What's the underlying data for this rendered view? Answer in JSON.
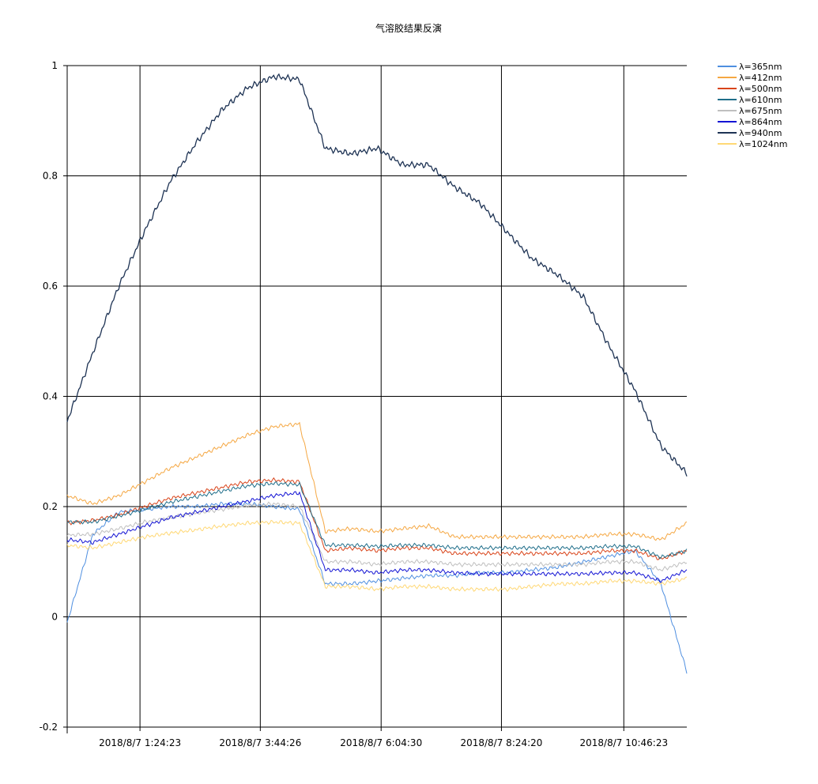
{
  "chart_data": {
    "type": "line",
    "title": "气溶胶结果反演",
    "xlabel": "",
    "ylabel": "",
    "ylim": [
      -0.2,
      1
    ],
    "y_ticks": [
      -0.2,
      0,
      0.2,
      0.4,
      0.6,
      0.8,
      1
    ],
    "y_tick_labels": [
      "-0.2",
      "0",
      "0.2",
      "0.4",
      "0.6",
      "0.8",
      "1"
    ],
    "x_time_range_hours": [
      0.0,
      12.0
    ],
    "x_ticks_hours": [
      1.41,
      3.74,
      6.08,
      8.41,
      10.78
    ],
    "x_tick_labels": [
      "2018/8/7 1:24:23",
      "2018/8/7 3:44:26",
      "2018/8/7 6:04:30",
      "2018/8/7 8:24:20",
      "2018/8/7 10:46:23"
    ],
    "grid": true,
    "legend_position": "top-right",
    "x": [
      0.0,
      0.5,
      1.0,
      1.5,
      2.0,
      2.5,
      3.0,
      3.5,
      4.0,
      4.5,
      5.0,
      5.5,
      6.0,
      6.5,
      7.0,
      7.5,
      8.0,
      8.5,
      9.0,
      9.5,
      10.0,
      10.5,
      11.0,
      11.5,
      12.0
    ],
    "series": [
      {
        "name": "λ=365nm",
        "color": "#4f8fe0",
        "values": [
          -0.01,
          0.15,
          0.19,
          0.195,
          0.2,
          0.2,
          0.205,
          0.205,
          0.2,
          0.195,
          0.06,
          0.06,
          0.065,
          0.07,
          0.075,
          0.075,
          0.08,
          0.08,
          0.085,
          0.09,
          0.1,
          0.11,
          0.12,
          0.06,
          -0.1
        ]
      },
      {
        "name": "λ=412nm",
        "color": "#f5a742",
        "values": [
          0.22,
          0.205,
          0.22,
          0.245,
          0.27,
          0.29,
          0.31,
          0.33,
          0.345,
          0.35,
          0.155,
          0.16,
          0.155,
          0.16,
          0.165,
          0.145,
          0.145,
          0.145,
          0.145,
          0.145,
          0.145,
          0.15,
          0.15,
          0.14,
          0.17
        ]
      },
      {
        "name": "λ=500nm",
        "color": "#d9441a",
        "values": [
          0.17,
          0.175,
          0.185,
          0.2,
          0.215,
          0.225,
          0.235,
          0.245,
          0.248,
          0.245,
          0.12,
          0.125,
          0.12,
          0.125,
          0.125,
          0.115,
          0.115,
          0.115,
          0.115,
          0.115,
          0.115,
          0.12,
          0.12,
          0.105,
          0.12
        ]
      },
      {
        "name": "λ=610nm",
        "color": "#1f6e8a",
        "values": [
          0.172,
          0.172,
          0.183,
          0.195,
          0.208,
          0.218,
          0.228,
          0.238,
          0.242,
          0.24,
          0.13,
          0.13,
          0.128,
          0.13,
          0.13,
          0.125,
          0.125,
          0.125,
          0.125,
          0.125,
          0.125,
          0.128,
          0.128,
          0.108,
          0.12
        ]
      },
      {
        "name": "λ=675nm",
        "color": "#bfbfbf",
        "values": [
          0.148,
          0.15,
          0.16,
          0.172,
          0.18,
          0.188,
          0.195,
          0.202,
          0.205,
          0.2,
          0.1,
          0.1,
          0.095,
          0.1,
          0.1,
          0.095,
          0.095,
          0.095,
          0.095,
          0.095,
          0.095,
          0.1,
          0.1,
          0.085,
          0.1
        ]
      },
      {
        "name": "λ=864nm",
        "color": "#1414d4",
        "values": [
          0.14,
          0.135,
          0.15,
          0.165,
          0.18,
          0.19,
          0.2,
          0.21,
          0.22,
          0.225,
          0.085,
          0.085,
          0.08,
          0.085,
          0.085,
          0.08,
          0.078,
          0.078,
          0.078,
          0.078,
          0.078,
          0.08,
          0.08,
          0.065,
          0.085
        ]
      },
      {
        "name": "λ=940nm",
        "color": "#1e3354",
        "values": [
          0.355,
          0.48,
          0.6,
          0.7,
          0.79,
          0.86,
          0.92,
          0.96,
          0.98,
          0.975,
          0.85,
          0.84,
          0.85,
          0.82,
          0.82,
          0.78,
          0.75,
          0.7,
          0.65,
          0.62,
          0.58,
          0.49,
          0.41,
          0.31,
          0.26
        ]
      },
      {
        "name": "λ=1024nm",
        "color": "#ffd875",
        "values": [
          0.13,
          0.125,
          0.135,
          0.145,
          0.152,
          0.158,
          0.165,
          0.17,
          0.172,
          0.17,
          0.055,
          0.055,
          0.05,
          0.055,
          0.055,
          0.05,
          0.05,
          0.05,
          0.055,
          0.06,
          0.06,
          0.065,
          0.065,
          0.06,
          0.07
        ]
      }
    ]
  }
}
